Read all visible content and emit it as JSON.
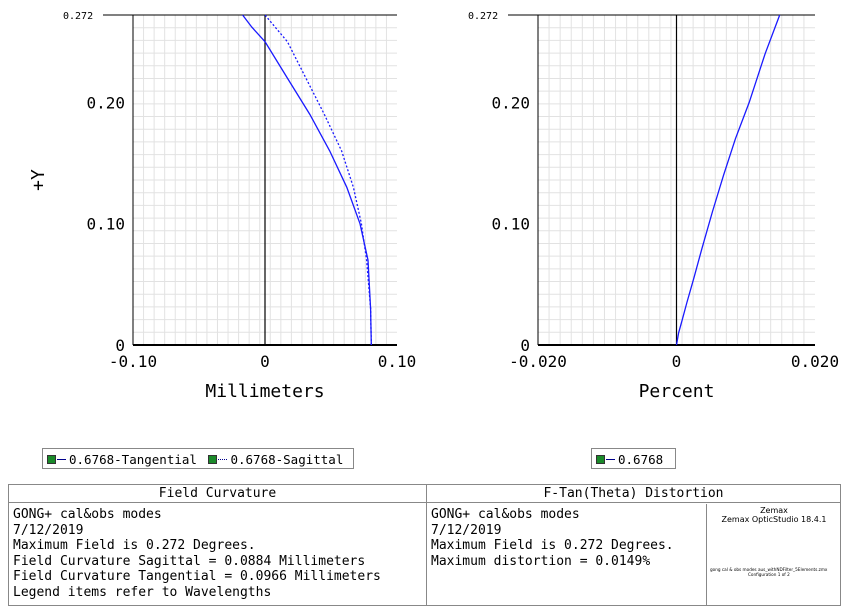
{
  "chart_data": [
    {
      "type": "line",
      "name": "field-curvature",
      "xlabel": "Millimeters",
      "ylabel": "+Y",
      "xlim": [
        -0.1,
        0.1
      ],
      "ylim": [
        0,
        0.272
      ],
      "x_ticks": [
        "-0.10",
        "0",
        "0.10"
      ],
      "y_ticks": [
        "0",
        "0.10",
        "0.20",
        "0.272"
      ],
      "grid": true,
      "series": [
        {
          "name": "0.6768-Tangential",
          "style": "solid",
          "color": "#1a1aff",
          "x": [
            0.0805,
            0.08,
            0.078,
            0.072,
            0.062,
            0.049,
            0.034,
            0.017,
            0.0,
            -0.01,
            -0.017
          ],
          "y": [
            0.0,
            0.03,
            0.07,
            0.1,
            0.13,
            0.16,
            0.19,
            0.22,
            0.25,
            0.262,
            0.272
          ]
        },
        {
          "name": "0.6768-Sagittal",
          "style": "dotted",
          "color": "#1a1aff",
          "x": [
            0.0805,
            0.08,
            0.077,
            0.073,
            0.067,
            0.058,
            0.045,
            0.031,
            0.017,
            0.0
          ],
          "y": [
            0.0,
            0.03,
            0.07,
            0.1,
            0.13,
            0.16,
            0.19,
            0.22,
            0.25,
            0.272
          ]
        }
      ]
    },
    {
      "type": "line",
      "name": "distortion",
      "xlabel": "Percent",
      "xlim": [
        -0.02,
        0.02
      ],
      "ylim": [
        0,
        0.272
      ],
      "x_ticks": [
        "-0.020",
        "0",
        "0.020"
      ],
      "y_ticks": [
        "0",
        "0.10",
        "0.20",
        "0.272"
      ],
      "grid": true,
      "series": [
        {
          "name": "0.6768",
          "style": "solid",
          "color": "#1a1aff",
          "x": [
            0.0,
            0.0003,
            0.0008,
            0.0015,
            0.0025,
            0.0037,
            0.0052,
            0.0068,
            0.0085,
            0.0105,
            0.0128,
            0.0149
          ],
          "y": [
            0.0,
            0.01,
            0.02,
            0.035,
            0.055,
            0.08,
            0.11,
            0.14,
            0.17,
            0.2,
            0.24,
            0.272
          ]
        }
      ]
    }
  ],
  "legends": {
    "left": [
      "0.6768-Tangential",
      "0.6768-Sagittal"
    ],
    "right": [
      "0.6768"
    ]
  },
  "info": {
    "left_title": "Field Curvature",
    "right_title": "F-Tan(Theta) Distortion",
    "left_lines": [
      "GONG+ cal&obs modes",
      "7/12/2019",
      "Maximum Field is 0.272 Degrees.",
      "Field Curvature Sagittal = 0.0884 Millimeters",
      "Field Curvature Tangential = 0.0966 Millimeters",
      "Legend items refer to Wavelengths"
    ],
    "right_lines": [
      "GONG+ cal&obs modes",
      "7/12/2019",
      "Maximum Field is 0.272 Degrees.",
      "Maximum distortion = 0.0149%"
    ],
    "zemax_line1": "Zemax",
    "zemax_line2": "Zemax OpticStudio 18.4.1",
    "zemax_tiny1": "gong cal & obs modes aus_withNDFilter_5Elements.zmx",
    "zemax_tiny2": "Configuration 1 of 2"
  }
}
